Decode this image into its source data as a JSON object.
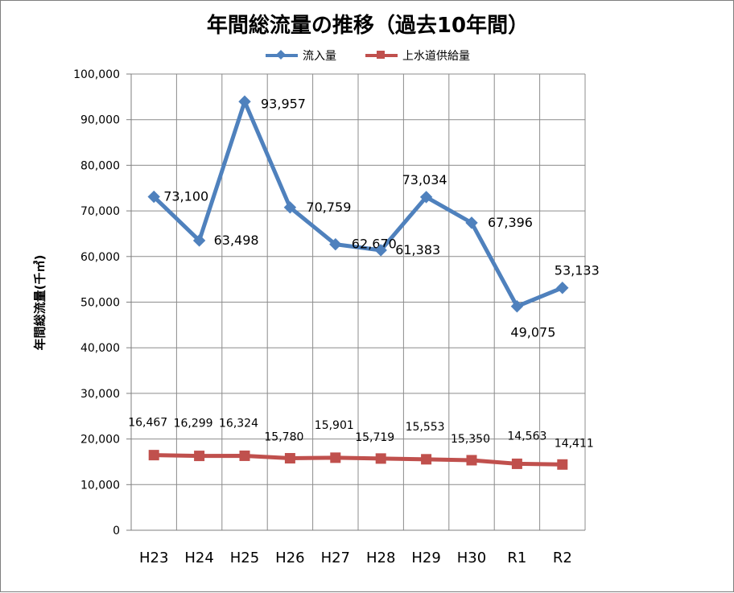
{
  "chart_data": {
    "type": "line",
    "title": "年間総流量の推移（過去10年間）",
    "ylabel": "年間総流量(千㎥)",
    "xlabel": "",
    "categories": [
      "H23",
      "H24",
      "H25",
      "H26",
      "H27",
      "H28",
      "H29",
      "H30",
      "R1",
      "R2"
    ],
    "ylim": [
      0,
      100000
    ],
    "yticks": [
      0,
      10000,
      20000,
      30000,
      40000,
      50000,
      60000,
      70000,
      80000,
      90000,
      100000
    ],
    "ytick_labels": [
      "0",
      "10,000",
      "20,000",
      "30,000",
      "40,000",
      "50,000",
      "60,000",
      "70,000",
      "80,000",
      "90,000",
      "100,000"
    ],
    "grid": true,
    "legend_position": "top-center",
    "series": [
      {
        "name": "流入量",
        "color": "#4f81bd",
        "marker": "diamond",
        "values": [
          73100,
          63498,
          93957,
          70759,
          62670,
          61383,
          73034,
          67396,
          49075,
          53133
        ],
        "labels": [
          "73,100",
          "63,498",
          "93,957",
          "70,759",
          "62,670",
          "61,383",
          "73,034",
          "67,396",
          "49,075",
          "53,133"
        ]
      },
      {
        "name": "上水道供給量",
        "color": "#c0504d",
        "marker": "square",
        "values": [
          16467,
          16299,
          16324,
          15780,
          15901,
          15719,
          15553,
          15350,
          14563,
          14411
        ],
        "labels": [
          "16,467",
          "16,299",
          "16,324",
          "15,780",
          "15,901",
          "15,719",
          "15,553",
          "15,350",
          "14,563",
          "14,411"
        ]
      }
    ]
  }
}
